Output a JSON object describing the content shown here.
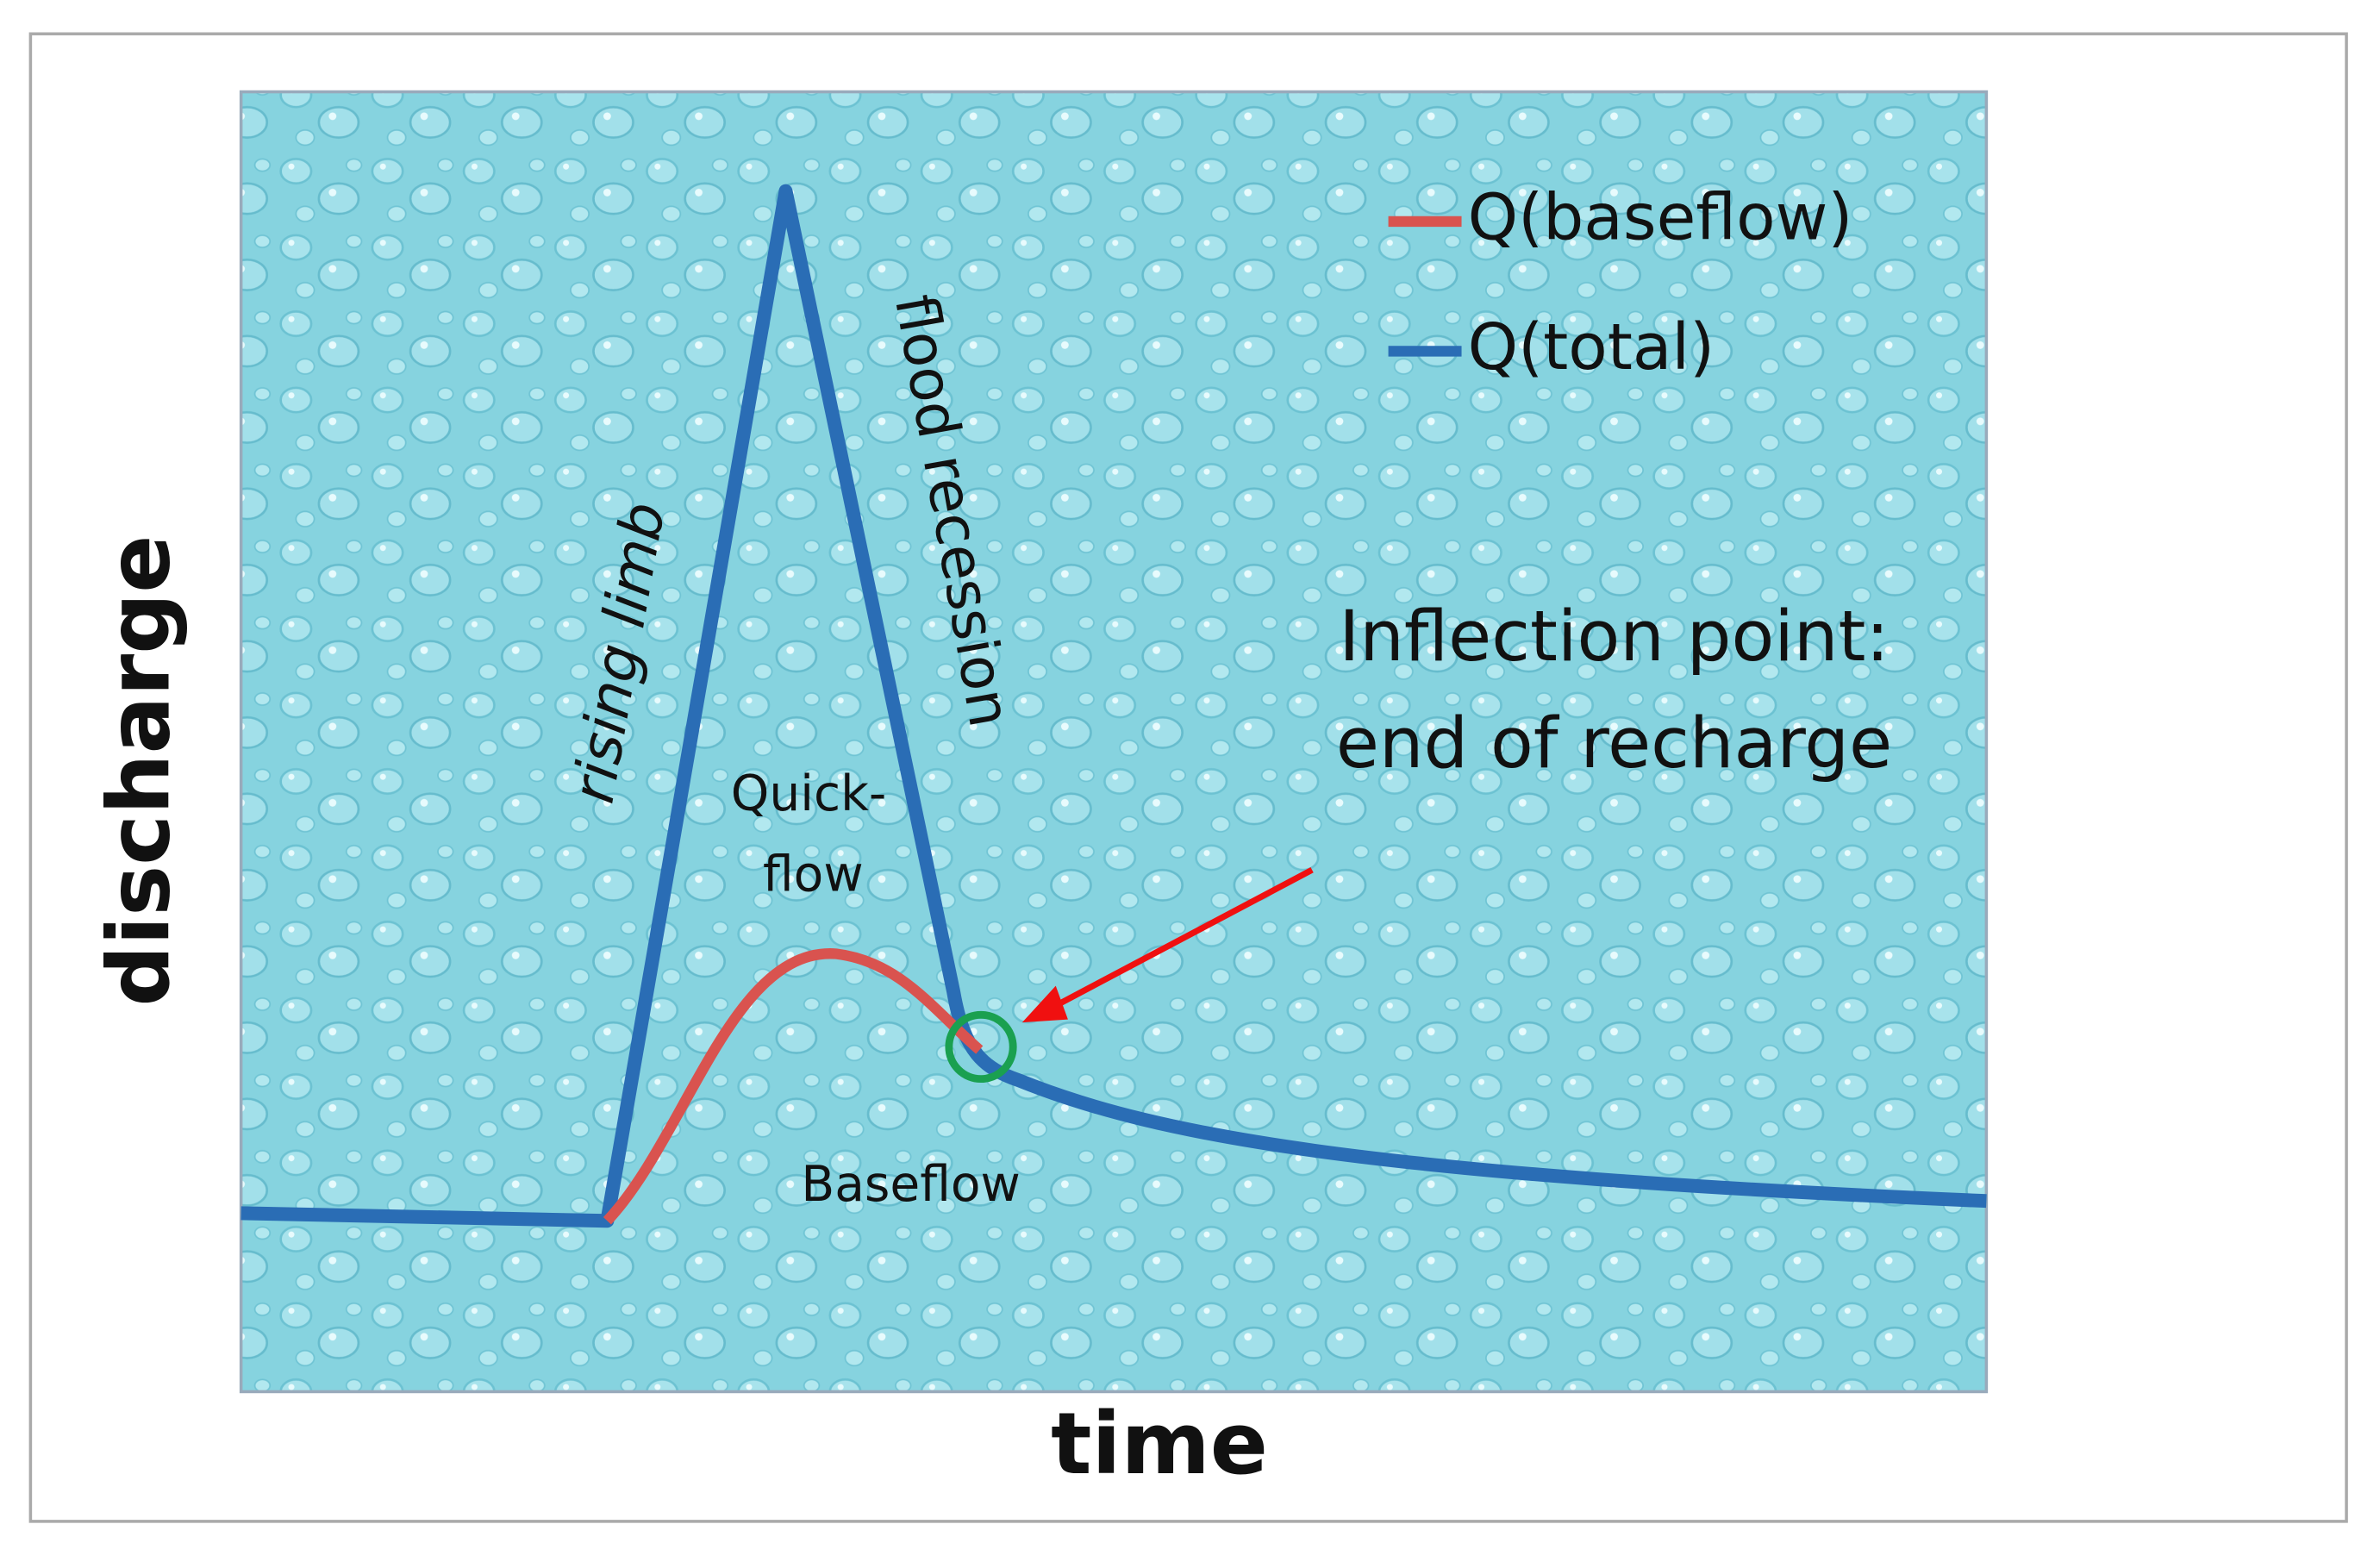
{
  "axes": {
    "x_label": "time",
    "y_label": "discharge"
  },
  "legend": [
    {
      "name": "Q(baseflow)",
      "color": "#d9534f"
    },
    {
      "name": "Q(total)",
      "color": "#2a6db5"
    }
  ],
  "annotations": {
    "rising_limb": "rising limb",
    "flood_recession": "flood recession",
    "quickflow": [
      "Quick-",
      "flow"
    ],
    "baseflow": "Baseflow",
    "inflection": [
      "Inflection point:",
      "end of recharge"
    ]
  }
}
